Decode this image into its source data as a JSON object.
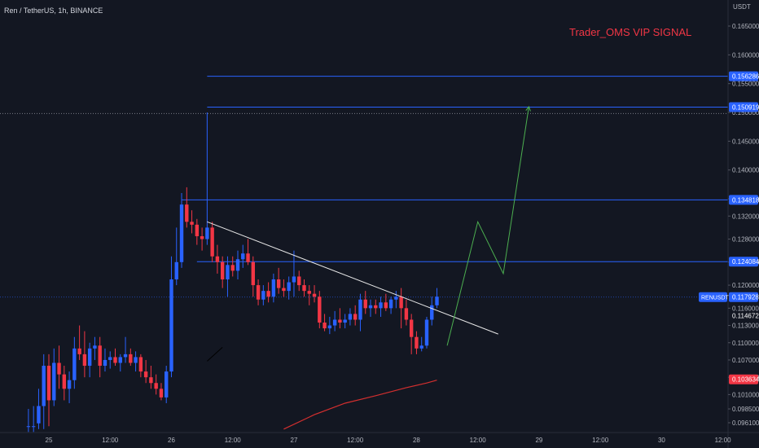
{
  "header": {
    "symbol_title": "Ren / TetherUS, 1h, BINANCE",
    "signal_label": "Trader_OMS VIP SIGNAL"
  },
  "colors": {
    "background": "#131722",
    "up": "#2962ff",
    "down": "#f23645",
    "level_line": "#2962ff",
    "trendline": "#e8e8e8",
    "projection": "#4caf50",
    "moving_average": "#d32f2f",
    "zone": "#5d5d5d",
    "axis_text": "#b2b5be",
    "price_badge": "#2962ff",
    "red_badge": "#f23645"
  },
  "chart_data": {
    "type": "candlestick",
    "symbol": "RENUSDT",
    "exchange": "BINANCE",
    "interval": "1h",
    "y_axis_unit": "USDT",
    "ylim": [
      0.0945,
      0.1686
    ],
    "y_ticks": [
      "0.165000",
      "0.160000",
      "0.155000",
      "0.150000",
      "0.145000",
      "0.140000",
      "0.135000",
      "0.132000",
      "0.128000",
      "0.124000",
      "0.120000",
      "0.116000",
      "0.113000",
      "0.110000",
      "0.107000",
      "0.104000",
      "0.101000",
      "0.098500",
      "0.096100"
    ],
    "x_ticks": [
      "25",
      "12:00",
      "26",
      "12:00",
      "27",
      "12:00",
      "28",
      "12:00",
      "29",
      "12:00",
      "30",
      "12:00"
    ],
    "x_tick_hours": [
      0,
      12,
      24,
      36,
      48,
      60,
      72,
      84,
      96,
      108,
      120,
      132
    ],
    "candles": [
      {
        "h": -4,
        "o": 0.0955,
        "hi": 0.0985,
        "lo": 0.0945,
        "c": 0.0955
      },
      {
        "h": -3,
        "o": 0.0955,
        "hi": 0.099,
        "lo": 0.0945,
        "c": 0.0955
      },
      {
        "h": -2,
        "o": 0.096,
        "hi": 0.102,
        "lo": 0.095,
        "c": 0.099
      },
      {
        "h": -1,
        "o": 0.099,
        "hi": 0.108,
        "lo": 0.095,
        "c": 0.106
      },
      {
        "h": 0,
        "o": 0.106,
        "hi": 0.108,
        "lo": 0.0955,
        "c": 0.1
      },
      {
        "h": 1,
        "o": 0.1,
        "hi": 0.109,
        "lo": 0.099,
        "c": 0.1065
      },
      {
        "h": 2,
        "o": 0.1065,
        "hi": 0.1095,
        "lo": 0.102,
        "c": 0.1045
      },
      {
        "h": 3,
        "o": 0.1045,
        "hi": 0.106,
        "lo": 0.1,
        "c": 0.102
      },
      {
        "h": 4,
        "o": 0.102,
        "hi": 0.105,
        "lo": 0.0995,
        "c": 0.1035
      },
      {
        "h": 5,
        "o": 0.1035,
        "hi": 0.111,
        "lo": 0.102,
        "c": 0.109
      },
      {
        "h": 6,
        "o": 0.109,
        "hi": 0.113,
        "lo": 0.107,
        "c": 0.108
      },
      {
        "h": 7,
        "o": 0.108,
        "hi": 0.112,
        "lo": 0.104,
        "c": 0.106
      },
      {
        "h": 8,
        "o": 0.106,
        "hi": 0.11,
        "lo": 0.104,
        "c": 0.109
      },
      {
        "h": 9,
        "o": 0.109,
        "hi": 0.111,
        "lo": 0.107,
        "c": 0.1095
      },
      {
        "h": 10,
        "o": 0.1095,
        "hi": 0.111,
        "lo": 0.104,
        "c": 0.106
      },
      {
        "h": 11,
        "o": 0.106,
        "hi": 0.109,
        "lo": 0.105,
        "c": 0.107
      },
      {
        "h": 12,
        "o": 0.107,
        "hi": 0.1085,
        "lo": 0.1055,
        "c": 0.1075
      },
      {
        "h": 13,
        "o": 0.1075,
        "hi": 0.109,
        "lo": 0.106,
        "c": 0.1065
      },
      {
        "h": 14,
        "o": 0.1065,
        "hi": 0.108,
        "lo": 0.105,
        "c": 0.1075
      },
      {
        "h": 15,
        "o": 0.1075,
        "hi": 0.111,
        "lo": 0.1065,
        "c": 0.108
      },
      {
        "h": 16,
        "o": 0.108,
        "hi": 0.109,
        "lo": 0.106,
        "c": 0.1065
      },
      {
        "h": 17,
        "o": 0.1065,
        "hi": 0.1085,
        "lo": 0.105,
        "c": 0.1075
      },
      {
        "h": 18,
        "o": 0.1075,
        "hi": 0.108,
        "lo": 0.104,
        "c": 0.105
      },
      {
        "h": 19,
        "o": 0.105,
        "hi": 0.107,
        "lo": 0.103,
        "c": 0.104
      },
      {
        "h": 20,
        "o": 0.104,
        "hi": 0.106,
        "lo": 0.102,
        "c": 0.103
      },
      {
        "h": 21,
        "o": 0.103,
        "hi": 0.1045,
        "lo": 0.101,
        "c": 0.102
      },
      {
        "h": 22,
        "o": 0.102,
        "hi": 0.103,
        "lo": 0.1,
        "c": 0.1005
      },
      {
        "h": 23,
        "o": 0.1005,
        "hi": 0.106,
        "lo": 0.0995,
        "c": 0.105
      },
      {
        "h": 24,
        "o": 0.105,
        "hi": 0.125,
        "lo": 0.104,
        "c": 0.121
      },
      {
        "h": 25,
        "o": 0.121,
        "hi": 0.13,
        "lo": 0.12,
        "c": 0.124
      },
      {
        "h": 26,
        "o": 0.124,
        "hi": 0.136,
        "lo": 0.123,
        "c": 0.134
      },
      {
        "h": 27,
        "o": 0.134,
        "hi": 0.137,
        "lo": 0.13,
        "c": 0.131
      },
      {
        "h": 28,
        "o": 0.131,
        "hi": 0.133,
        "lo": 0.129,
        "c": 0.1305
      },
      {
        "h": 29,
        "o": 0.1305,
        "hi": 0.1315,
        "lo": 0.127,
        "c": 0.1285
      },
      {
        "h": 30,
        "o": 0.1285,
        "hi": 0.13,
        "lo": 0.126,
        "c": 0.128
      },
      {
        "h": 31,
        "o": 0.128,
        "hi": 0.15,
        "lo": 0.127,
        "c": 0.13
      },
      {
        "h": 32,
        "o": 0.13,
        "hi": 0.131,
        "lo": 0.124,
        "c": 0.125
      },
      {
        "h": 33,
        "o": 0.125,
        "hi": 0.127,
        "lo": 0.122,
        "c": 0.124
      },
      {
        "h": 34,
        "o": 0.124,
        "hi": 0.125,
        "lo": 0.1195,
        "c": 0.121
      },
      {
        "h": 35,
        "o": 0.121,
        "hi": 0.125,
        "lo": 0.118,
        "c": 0.1235
      },
      {
        "h": 36,
        "o": 0.1235,
        "hi": 0.125,
        "lo": 0.1215,
        "c": 0.1225
      },
      {
        "h": 37,
        "o": 0.1225,
        "hi": 0.126,
        "lo": 0.121,
        "c": 0.1245
      },
      {
        "h": 38,
        "o": 0.1245,
        "hi": 0.127,
        "lo": 0.123,
        "c": 0.1255
      },
      {
        "h": 39,
        "o": 0.1255,
        "hi": 0.128,
        "lo": 0.1235,
        "c": 0.124
      },
      {
        "h": 40,
        "o": 0.124,
        "hi": 0.125,
        "lo": 0.118,
        "c": 0.12
      },
      {
        "h": 41,
        "o": 0.12,
        "hi": 0.121,
        "lo": 0.1165,
        "c": 0.1175
      },
      {
        "h": 42,
        "o": 0.1175,
        "hi": 0.12,
        "lo": 0.1165,
        "c": 0.119
      },
      {
        "h": 43,
        "o": 0.119,
        "hi": 0.1205,
        "lo": 0.117,
        "c": 0.118
      },
      {
        "h": 44,
        "o": 0.118,
        "hi": 0.122,
        "lo": 0.117,
        "c": 0.121
      },
      {
        "h": 45,
        "o": 0.121,
        "hi": 0.123,
        "lo": 0.1185,
        "c": 0.1195
      },
      {
        "h": 46,
        "o": 0.1195,
        "hi": 0.121,
        "lo": 0.118,
        "c": 0.119
      },
      {
        "h": 47,
        "o": 0.119,
        "hi": 0.1215,
        "lo": 0.1175,
        "c": 0.1205
      },
      {
        "h": 48,
        "o": 0.1205,
        "hi": 0.126,
        "lo": 0.118,
        "c": 0.1215
      },
      {
        "h": 49,
        "o": 0.1215,
        "hi": 0.1225,
        "lo": 0.119,
        "c": 0.12
      },
      {
        "h": 50,
        "o": 0.12,
        "hi": 0.121,
        "lo": 0.118,
        "c": 0.119
      },
      {
        "h": 51,
        "o": 0.119,
        "hi": 0.12,
        "lo": 0.1165,
        "c": 0.1185
      },
      {
        "h": 52,
        "o": 0.1185,
        "hi": 0.12,
        "lo": 0.117,
        "c": 0.118
      },
      {
        "h": 53,
        "o": 0.118,
        "hi": 0.119,
        "lo": 0.1125,
        "c": 0.1135
      },
      {
        "h": 54,
        "o": 0.1135,
        "hi": 0.115,
        "lo": 0.112,
        "c": 0.1125
      },
      {
        "h": 55,
        "o": 0.1125,
        "hi": 0.1145,
        "lo": 0.1115,
        "c": 0.113
      },
      {
        "h": 56,
        "o": 0.113,
        "hi": 0.1155,
        "lo": 0.112,
        "c": 0.114
      },
      {
        "h": 57,
        "o": 0.114,
        "hi": 0.116,
        "lo": 0.1125,
        "c": 0.1135
      },
      {
        "h": 58,
        "o": 0.1135,
        "hi": 0.115,
        "lo": 0.1125,
        "c": 0.114
      },
      {
        "h": 59,
        "o": 0.114,
        "hi": 0.116,
        "lo": 0.113,
        "c": 0.115
      },
      {
        "h": 60,
        "o": 0.115,
        "hi": 0.1165,
        "lo": 0.113,
        "c": 0.114
      },
      {
        "h": 61,
        "o": 0.114,
        "hi": 0.1185,
        "lo": 0.112,
        "c": 0.1175
      },
      {
        "h": 62,
        "o": 0.1175,
        "hi": 0.119,
        "lo": 0.115,
        "c": 0.116
      },
      {
        "h": 63,
        "o": 0.116,
        "hi": 0.1175,
        "lo": 0.1145,
        "c": 0.1165
      },
      {
        "h": 64,
        "o": 0.1165,
        "hi": 0.1175,
        "lo": 0.115,
        "c": 0.116
      },
      {
        "h": 65,
        "o": 0.116,
        "hi": 0.118,
        "lo": 0.1145,
        "c": 0.117
      },
      {
        "h": 66,
        "o": 0.117,
        "hi": 0.1185,
        "lo": 0.1155,
        "c": 0.116
      },
      {
        "h": 67,
        "o": 0.116,
        "hi": 0.118,
        "lo": 0.115,
        "c": 0.1175
      },
      {
        "h": 68,
        "o": 0.1175,
        "hi": 0.119,
        "lo": 0.116,
        "c": 0.118
      },
      {
        "h": 69,
        "o": 0.118,
        "hi": 0.1195,
        "lo": 0.1125,
        "c": 0.116
      },
      {
        "h": 70,
        "o": 0.116,
        "hi": 0.1175,
        "lo": 0.113,
        "c": 0.114
      },
      {
        "h": 71,
        "o": 0.114,
        "hi": 0.115,
        "lo": 0.108,
        "c": 0.111
      },
      {
        "h": 72,
        "o": 0.111,
        "hi": 0.112,
        "lo": 0.108,
        "c": 0.109
      },
      {
        "h": 73,
        "o": 0.109,
        "hi": 0.111,
        "lo": 0.1085,
        "c": 0.1095
      },
      {
        "h": 74,
        "o": 0.1095,
        "hi": 0.1145,
        "lo": 0.109,
        "c": 0.114
      },
      {
        "h": 75,
        "o": 0.114,
        "hi": 0.118,
        "lo": 0.113,
        "c": 0.1165
      },
      {
        "h": 76,
        "o": 0.1165,
        "hi": 0.1195,
        "lo": 0.116,
        "c": 0.118
      }
    ],
    "price_levels": [
      {
        "label": "0.156286",
        "value": 0.156286,
        "x_start_hour": 31
      },
      {
        "label": "0.150919",
        "value": 0.150919,
        "x_start_hour": 31
      },
      {
        "label": "0.134818",
        "value": 0.134818,
        "x_start_hour": 26
      },
      {
        "label": "0.124084",
        "value": 0.124084,
        "x_start_hour": 29
      }
    ],
    "dotted_level": 0.1498,
    "current_price": {
      "symbol": "RENUSDT",
      "label": "0.117928",
      "value": 0.117928
    },
    "additional_labels": [
      {
        "label": "0.114672",
        "value": 0.114672
      },
      {
        "label": "0.103634",
        "value": 0.103634,
        "color": "red"
      }
    ],
    "trendline": [
      {
        "hour": 31,
        "price": 0.131
      },
      {
        "hour": 88,
        "price": 0.1115
      }
    ],
    "projection_path": [
      {
        "hour": 78,
        "price": 0.1095
      },
      {
        "hour": 84,
        "price": 0.131
      },
      {
        "hour": 89,
        "price": 0.122
      },
      {
        "hour": 94,
        "price": 0.151
      }
    ],
    "zone": {
      "from_price": 0.1065,
      "to_price": 0.1095
    },
    "moving_average": [
      {
        "hour": 46,
        "price": 0.095
      },
      {
        "hour": 52,
        "price": 0.0975
      },
      {
        "hour": 58,
        "price": 0.0995
      },
      {
        "hour": 64,
        "price": 0.1008
      },
      {
        "hour": 70,
        "price": 0.1022
      },
      {
        "hour": 74,
        "price": 0.103
      },
      {
        "hour": 76,
        "price": 0.1035
      }
    ],
    "zone_line": [
      {
        "hour": 31,
        "price": 0.1068
      },
      {
        "hour": 34,
        "price": 0.1092
      }
    ]
  }
}
